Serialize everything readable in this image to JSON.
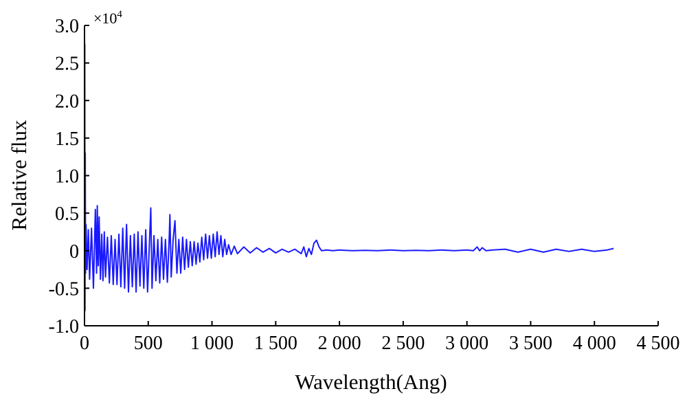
{
  "chart_data": {
    "type": "line",
    "title": "",
    "xlabel": "Wavelength(Ang)",
    "ylabel": "Relative flux",
    "y_multiplier_label": "×10",
    "y_multiplier_exponent": "4",
    "xlim": [
      0,
      4500
    ],
    "ylim": [
      -1.0,
      3.0
    ],
    "x_ticks": [
      0,
      500,
      1000,
      1500,
      2000,
      2500,
      3000,
      3500,
      4000,
      4500
    ],
    "x_tick_labels": [
      "0",
      "500",
      "1 000",
      "1 500",
      "2 000",
      "2 500",
      "3 000",
      "3 500",
      "4 000",
      "4 500"
    ],
    "y_ticks": [
      -1.0,
      -0.5,
      0,
      0.5,
      1.0,
      1.5,
      2.0,
      2.5,
      3.0
    ],
    "y_tick_labels": [
      "-1.0",
      "-0.5",
      "0",
      "0.5",
      "1.0",
      "1.5",
      "2.0",
      "2.5",
      "3.0"
    ],
    "grid": false,
    "legend": "none",
    "color": "#1a1aff",
    "series": [
      {
        "values_x": [
          0,
          2,
          4,
          6,
          8,
          12,
          20,
          30,
          40,
          55,
          70,
          85,
          95,
          100,
          108,
          115,
          125,
          135,
          145,
          155,
          165,
          180,
          195,
          210,
          225,
          240,
          255,
          270,
          285,
          300,
          315,
          330,
          345,
          360,
          375,
          390,
          405,
          420,
          435,
          450,
          465,
          480,
          495,
          510,
          520,
          530,
          545,
          560,
          575,
          590,
          605,
          620,
          635,
          650,
          665,
          670,
          680,
          695,
          710,
          725,
          740,
          755,
          770,
          785,
          800,
          815,
          830,
          845,
          860,
          875,
          890,
          905,
          920,
          935,
          950,
          965,
          980,
          995,
          1010,
          1025,
          1040,
          1055,
          1070,
          1085,
          1100,
          1115,
          1130,
          1150,
          1175,
          1200,
          1250,
          1300,
          1350,
          1400,
          1450,
          1500,
          1550,
          1600,
          1650,
          1700,
          1720,
          1740,
          1760,
          1780,
          1800,
          1820,
          1840,
          1860,
          1900,
          1950,
          2000,
          2100,
          2200,
          2300,
          2400,
          2500,
          2600,
          2700,
          2800,
          2900,
          3000,
          3050,
          3080,
          3100,
          3120,
          3150,
          3200,
          3300,
          3400,
          3500,
          3600,
          3700,
          3800,
          3900,
          4000,
          4100,
          4150
        ],
        "values_y": [
          0.0,
          2.75,
          -0.8,
          1.3,
          -0.3,
          0.35,
          -0.25,
          0.28,
          -0.38,
          0.3,
          -0.5,
          0.55,
          -0.3,
          0.6,
          -0.2,
          0.45,
          -0.38,
          0.22,
          -0.4,
          0.25,
          -0.35,
          0.18,
          -0.43,
          0.2,
          -0.45,
          0.15,
          -0.45,
          0.22,
          -0.48,
          0.3,
          -0.5,
          0.35,
          -0.55,
          0.2,
          -0.48,
          0.22,
          -0.55,
          0.25,
          -0.47,
          0.2,
          -0.5,
          0.28,
          -0.55,
          0.12,
          0.57,
          -0.5,
          0.2,
          -0.4,
          0.15,
          -0.43,
          0.18,
          -0.38,
          0.15,
          -0.42,
          0.2,
          0.48,
          -0.35,
          0.15,
          0.4,
          -0.3,
          0.15,
          -0.3,
          0.18,
          -0.25,
          0.15,
          -0.22,
          0.12,
          -0.2,
          0.12,
          -0.18,
          0.1,
          -0.15,
          0.18,
          -0.12,
          0.22,
          -0.1,
          0.2,
          -0.1,
          0.22,
          -0.08,
          0.25,
          -0.05,
          0.2,
          -0.08,
          0.15,
          -0.05,
          0.08,
          -0.05,
          0.06,
          -0.04,
          0.05,
          -0.03,
          0.04,
          -0.02,
          0.03,
          -0.03,
          0.02,
          -0.02,
          0.02,
          -0.04,
          0.05,
          -0.08,
          0.03,
          -0.05,
          0.1,
          0.14,
          0.05,
          0.0,
          0.01,
          0.0,
          0.01,
          0.0,
          0.005,
          0.0,
          0.01,
          0.0,
          0.005,
          0.0,
          0.01,
          0.0,
          0.01,
          0.0,
          0.05,
          0.0,
          0.04,
          0.0,
          0.01,
          0.02,
          -0.02,
          0.02,
          -0.02,
          0.02,
          -0.01,
          0.02,
          -0.01,
          0.01,
          0.03
        ]
      }
    ]
  }
}
